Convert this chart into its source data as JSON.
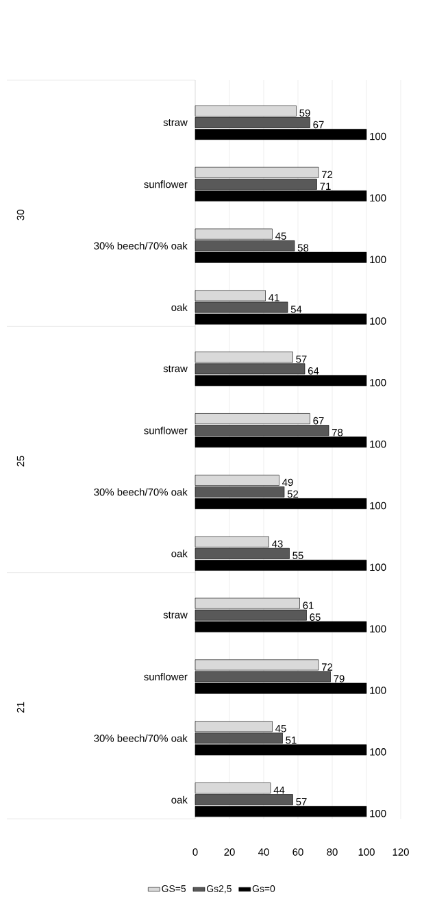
{
  "chart_data": {
    "type": "bar",
    "orientation": "horizontal",
    "categories": [
      "straw",
      "sunflower",
      "30% beech/70% oak",
      "oak",
      "straw",
      "sunflower",
      "30% beech/70% oak",
      "oak",
      "straw",
      "sunflower",
      "30% beech/70% oak",
      "oak"
    ],
    "series": [
      {
        "name": "GS=5",
        "color": "#d9d9d9",
        "values": [
          59,
          72,
          45,
          41,
          57,
          67,
          49,
          43,
          61,
          72,
          45,
          44
        ]
      },
      {
        "name": "Gs2,5",
        "color": "#595959",
        "values": [
          67,
          71,
          58,
          54,
          64,
          78,
          52,
          55,
          65,
          79,
          51,
          57
        ]
      },
      {
        "name": "Gs=0",
        "color": "#000000",
        "values": [
          100,
          100,
          100,
          100,
          100,
          100,
          100,
          100,
          100,
          100,
          100,
          100
        ]
      }
    ],
    "annotations": [
      "30",
      "25",
      "21"
    ],
    "xlim": [
      0,
      120
    ],
    "xticks": [
      0,
      20,
      40,
      60,
      80,
      100,
      120
    ],
    "grid": "x",
    "legend": "bottom",
    "data_labels": true
  }
}
